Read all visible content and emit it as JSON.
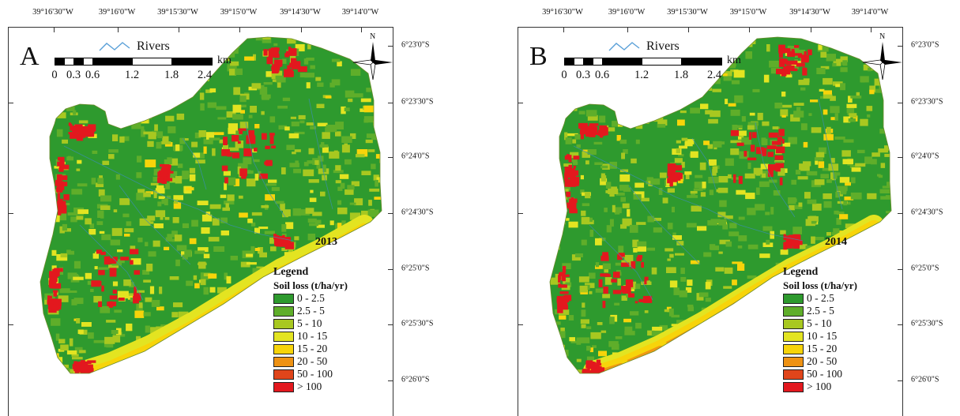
{
  "longitude_labels": [
    "39°16'30\"W",
    "39°16'0\"W",
    "39°15'30\"W",
    "39°15'0\"W",
    "39°14'30\"W",
    "39°14'0\"W"
  ],
  "latitude_labels": [
    "6°23'0\"S",
    "6°23'30\"S",
    "6°24'0\"S",
    "6°24'30\"S",
    "6°25'0\"S",
    "6°25'30\"S",
    "6°26'0\"S"
  ],
  "rivers_label": "Rivers",
  "scale": {
    "labels": [
      "0",
      "0.3",
      "0.6",
      "1.2",
      "1.8",
      "2.4"
    ],
    "unit": "km"
  },
  "north_label": "N",
  "legend": {
    "title": "Legend",
    "subtitle": "Soil loss (t/ha/yr)",
    "classes": [
      {
        "label": "0 - 2.5",
        "color": "#2e9a2e"
      },
      {
        "label": "2.5 - 5",
        "color": "#5fae2a"
      },
      {
        "label": "5 - 10",
        "color": "#a8c820"
      },
      {
        "label": "10 - 15",
        "color": "#e3e421"
      },
      {
        "label": "15 - 20",
        "color": "#f7d40a"
      },
      {
        "label": "20 - 50",
        "color": "#ee9213"
      },
      {
        "label": "50 - 100",
        "color": "#e0451a"
      },
      {
        "label": "> 100",
        "color": "#e3181e"
      }
    ]
  },
  "panels": [
    {
      "letter": "A",
      "year": "2013",
      "erosion_emphasis": 0.25
    },
    {
      "letter": "B",
      "year": "2014",
      "erosion_emphasis": 0.85
    }
  ]
}
